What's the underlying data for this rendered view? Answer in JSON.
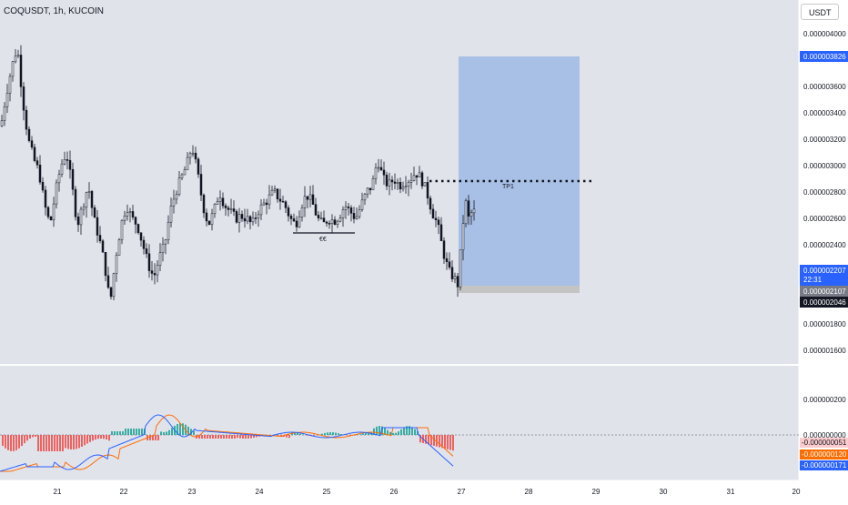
{
  "header": {
    "symbol_title": "COQUSDT, 1h, KUCOIN",
    "currency_button": "USDT"
  },
  "price_axis": {
    "ticks": [
      "0.000004000",
      "0.000003600",
      "0.000003400",
      "0.000003200",
      "0.000003000",
      "0.000002800",
      "0.000002600",
      "0.000002400",
      "0.000001800",
      "0.000001600"
    ],
    "tick_values": [
      4.0,
      3.6,
      3.4,
      3.2,
      3.0,
      2.8,
      2.6,
      2.4,
      1.8,
      1.6
    ],
    "badges": {
      "target": "0.000003826",
      "current": "0.000002207",
      "countdown": "22:31",
      "entry": "0.000002107",
      "stop": "0.000002046"
    },
    "badge_colors": {
      "target": "#2962ff",
      "current": "#2962ff",
      "entry": "#787b86",
      "stop": "#131722"
    }
  },
  "indicator_axis": {
    "ticks": [
      "0.000000200",
      "0.000000000"
    ],
    "badges": {
      "hist": "-0.000000051",
      "signal": "-0.000000120",
      "macd": "-0.000000171"
    },
    "badge_colors": {
      "hist": "#fccbcd",
      "signal": "#ff6d00",
      "macd": "#2962ff"
    }
  },
  "time_axis": {
    "labels": [
      "21",
      "22",
      "23",
      "24",
      "25",
      "26",
      "27",
      "28",
      "29",
      "30",
      "31",
      "20"
    ]
  },
  "annotations": {
    "tp_label": "TP1",
    "range_label": "€€"
  },
  "colors": {
    "long_zone": "#a9c0e6",
    "stop_zone": "#c4c4c4",
    "candle": "#131722",
    "hist_pos": "#26a69a",
    "hist_neg": "#ef5350",
    "macd_line": "#2962ff",
    "signal_line": "#ff6d00",
    "pane_bg": "#e1e3eb"
  }
}
